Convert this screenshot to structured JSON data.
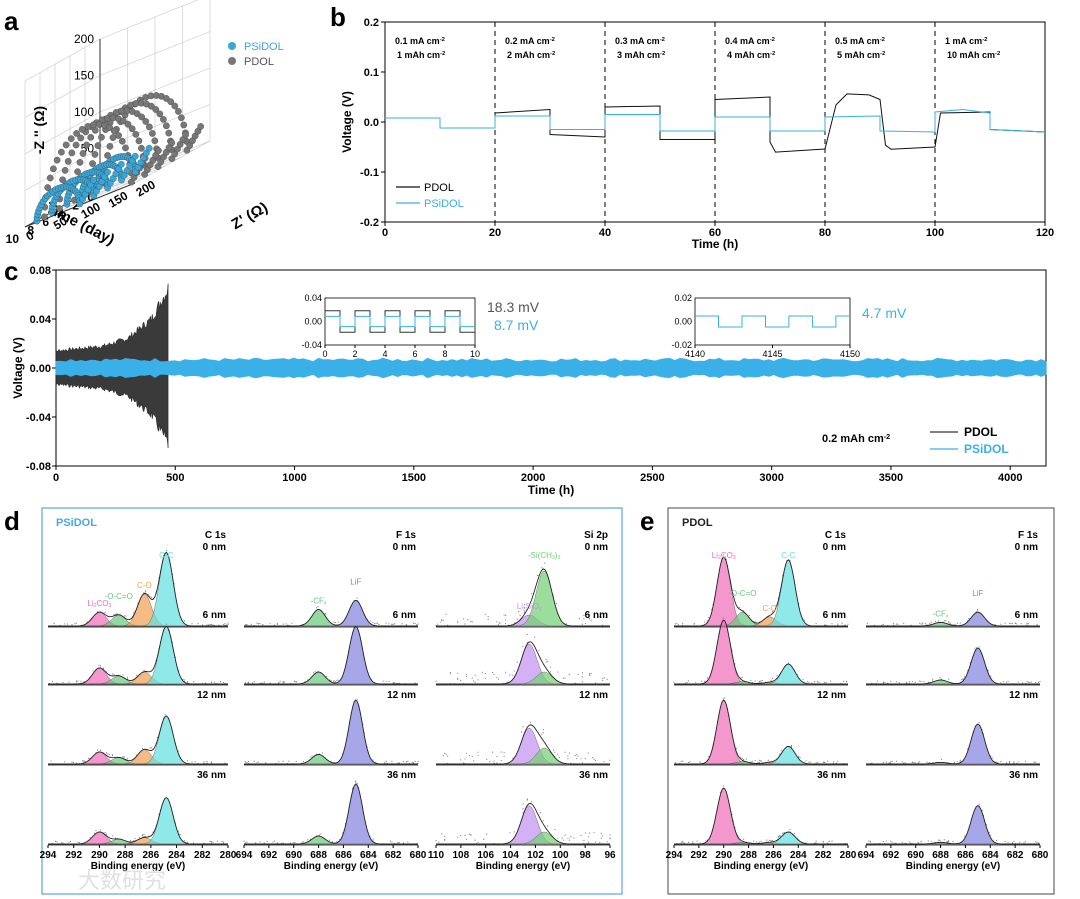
{
  "panel_letters": {
    "a": "a",
    "b": "b",
    "c": "c",
    "d": "d",
    "e": "e"
  },
  "watermark": "大数研究",
  "chart_data": [
    {
      "id": "a",
      "type": "scatter",
      "title": "",
      "xlabel": "Time (day)",
      "ylabel": "-Z '' (Ω)",
      "zlabel": "Z' (Ω)",
      "time_ticks": [
        "0",
        "2",
        "4",
        "6",
        "8",
        "10"
      ],
      "zreal_ticks": [
        "0",
        "50",
        "100",
        "150",
        "200"
      ],
      "zimag_ticks": [
        "0",
        "50",
        "100",
        "150",
        "200"
      ],
      "legend": [
        "PSiDOL",
        "PDOL"
      ],
      "series": [
        {
          "name": "PSiDOL",
          "days": [
            1,
            3,
            5,
            7,
            9
          ],
          "arc_diameter_ohm": [
            70,
            72,
            74,
            76,
            78
          ],
          "arc_height_ohm": [
            30,
            30,
            31,
            32,
            33
          ]
        },
        {
          "name": "PDOL",
          "days": [
            0,
            2,
            4,
            6,
            8
          ],
          "arc_diameter_ohm": [
            150,
            150,
            152,
            155,
            158
          ],
          "arc_height_ohm": [
            95,
            96,
            97,
            98,
            100
          ]
        }
      ]
    },
    {
      "id": "b",
      "type": "line",
      "xlabel": "Time (h)",
      "ylabel": "Voltage (V)",
      "xlim": [
        0,
        120
      ],
      "ylim": [
        -0.2,
        0.2
      ],
      "xticks": [
        "0",
        "20",
        "40",
        "60",
        "80",
        "100",
        "120"
      ],
      "yticks": [
        "-0.2",
        "-0.1",
        "0.0",
        "0.1",
        "0.2"
      ],
      "annotations": [
        {
          "l1": "0.1 mA cm",
          "s1": "-2",
          "l2": "1 mAh cm",
          "s2": "-2",
          "x": 0
        },
        {
          "l1": "0.2 mA cm",
          "s1": "-2",
          "l2": "2 mAh cm",
          "s2": "-2",
          "x": 20
        },
        {
          "l1": "0.3 mA cm",
          "s1": "-2",
          "l2": "3 mAh cm",
          "s2": "-2",
          "x": 40
        },
        {
          "l1": "0.4 mA cm",
          "s1": "-2",
          "l2": "4 mAh cm",
          "s2": "-2",
          "x": 60
        },
        {
          "l1": "0.5 mA cm",
          "s1": "-2",
          "l2": "5 mAh cm",
          "s2": "-2",
          "x": 80
        },
        {
          "l1": "1 mA cm",
          "s1": "-2",
          "l2": "10 mAh cm",
          "s2": "-2",
          "x": 100
        }
      ],
      "dividers": [
        20,
        40,
        60,
        80,
        100
      ],
      "legend": [
        "PDOL",
        "PSiDOL"
      ],
      "series": [
        {
          "name": "PDOL",
          "points": [
            [
              0,
              0.008
            ],
            [
              10,
              0.008
            ],
            [
              10,
              -0.012
            ],
            [
              20,
              -0.012
            ],
            [
              20,
              0.018
            ],
            [
              30,
              0.025
            ],
            [
              30,
              -0.025
            ],
            [
              40,
              -0.03
            ],
            [
              40,
              0.03
            ],
            [
              50,
              0.032
            ],
            [
              50,
              -0.035
            ],
            [
              60,
              -0.035
            ],
            [
              60,
              0.045
            ],
            [
              70,
              0.05
            ],
            [
              70,
              -0.04
            ],
            [
              71,
              -0.06
            ],
            [
              80,
              -0.055
            ],
            [
              82,
              0.04
            ],
            [
              84,
              0.06
            ],
            [
              88,
              0.055
            ],
            [
              90,
              0.045
            ],
            [
              91,
              -0.04
            ],
            [
              92,
              -0.06
            ],
            [
              100,
              -0.05
            ],
            [
              101,
              0.018
            ],
            [
              110,
              0.02
            ],
            [
              110,
              -0.015
            ],
            [
              120,
              -0.02
            ]
          ]
        },
        {
          "name": "PSiDOL",
          "points": [
            [
              0,
              0.008
            ],
            [
              10,
              0.008
            ],
            [
              10,
              -0.012
            ],
            [
              20,
              -0.012
            ],
            [
              20,
              0.012
            ],
            [
              30,
              0.012
            ],
            [
              30,
              -0.015
            ],
            [
              40,
              -0.015
            ],
            [
              40,
              0.015
            ],
            [
              50,
              0.015
            ],
            [
              50,
              -0.018
            ],
            [
              60,
              -0.018
            ],
            [
              60,
              0.01
            ],
            [
              70,
              0.01
            ],
            [
              70,
              -0.018
            ],
            [
              80,
              -0.018
            ],
            [
              80,
              0.01
            ],
            [
              90,
              0.012
            ],
            [
              90,
              -0.018
            ],
            [
              100,
              -0.02
            ],
            [
              100,
              0.02
            ],
            [
              105,
              0.025
            ],
            [
              110,
              0.018
            ],
            [
              110,
              -0.015
            ],
            [
              120,
              -0.02
            ]
          ]
        }
      ]
    },
    {
      "id": "c",
      "type": "line",
      "xlabel": "Time (h)",
      "ylabel": "Voltage (V)",
      "xlim": [
        0,
        4150
      ],
      "ylim": [
        -0.08,
        0.08
      ],
      "xticks": [
        "0",
        "500",
        "1000",
        "1500",
        "2000",
        "2500",
        "3000",
        "3500",
        "4000"
      ],
      "yticks": [
        "-0.08",
        "-0.04",
        "0.00",
        "0.04",
        "0.08"
      ],
      "annotation": "0.2 mAh cm",
      "annotation_sup": "-2",
      "legend": [
        "PDOL",
        "PSiDOL"
      ],
      "series": [
        {
          "name": "PDOL",
          "envelope": [
            [
              0,
              0.014
            ],
            [
              100,
              0.016
            ],
            [
              200,
              0.018
            ],
            [
              300,
              0.024
            ],
            [
              400,
              0.04
            ],
            [
              470,
              0.065
            ]
          ],
          "ends_at_h": 470
        },
        {
          "name": "PSiDOL",
          "envelope": [
            [
              0,
              0.008
            ],
            [
              4150,
              0.006
            ]
          ]
        }
      ],
      "insets": [
        {
          "xlim": [
            0,
            10
          ],
          "ylim": [
            -0.04,
            0.04
          ],
          "xticks": [
            "0",
            "2",
            "4",
            "6",
            "8",
            "10"
          ],
          "yticks": [
            "-0.04",
            "0.00",
            "0.04"
          ],
          "labels": [
            "18.3 mV",
            "8.7 mV"
          ]
        },
        {
          "xlim": [
            4140,
            4150
          ],
          "ylim": [
            -0.02,
            0.02
          ],
          "xticks": [
            "4140",
            "4145",
            "4150"
          ],
          "yticks": [
            "-0.02",
            "0.00",
            "0.02"
          ],
          "labels": [
            "4.7 mV"
          ]
        }
      ]
    },
    {
      "id": "d",
      "type": "line",
      "title": "PSiDOL",
      "xlabel": "Binding energy (eV)",
      "depths": [
        "0 nm",
        "6 nm",
        "12 nm",
        "36 nm"
      ],
      "spectra": [
        {
          "name": "C 1s",
          "xticks": [
            "294",
            "292",
            "290",
            "288",
            "286",
            "284",
            "282",
            "280"
          ],
          "peaks": [
            {
              "label": "Li2CO3",
              "base": "Li",
              "sub": "2",
              "tail": "CO",
              "sub2": "3",
              "center_eV": 290,
              "heights": [
                0.15,
                0.2,
                0.15,
                0.15
              ],
              "color": "#f06bb8"
            },
            {
              "label": "-O-C=O",
              "base": "-O-C=O",
              "center_eV": 288.5,
              "heights": [
                0.12,
                0.1,
                0.08,
                0.06
              ],
              "color": "#67c77a"
            },
            {
              "label": "C-O",
              "base": "C-O",
              "center_eV": 286.5,
              "heights": [
                0.35,
                0.15,
                0.18,
                0.08
              ],
              "color": "#f0a050"
            },
            {
              "label": "C-C",
              "base": "C-C",
              "center_eV": 284.8,
              "heights": [
                0.8,
                0.72,
                0.6,
                0.58
              ],
              "color": "#60e0e0"
            }
          ]
        },
        {
          "name": "F 1s",
          "xticks": [
            "694",
            "692",
            "690",
            "688",
            "686",
            "684",
            "682",
            "680"
          ],
          "peaks": [
            {
              "label": "-CFx",
              "base": "-CF",
              "sub": "x",
              "center_eV": 688,
              "heights": [
                0.18,
                0.15,
                0.12,
                0.1
              ],
              "color": "#67c77a"
            },
            {
              "label": "LiF",
              "base": "LiF",
              "center_eV": 685,
              "heights": [
                0.28,
                0.72,
                0.8,
                0.75
              ],
              "color": "#8080e0"
            }
          ]
        },
        {
          "name": "Si 2p",
          "xticks": [
            "110",
            "108",
            "106",
            "104",
            "102",
            "100",
            "98",
            "96"
          ],
          "peaks": [
            {
              "label": "LixSiOy",
              "base": "Li",
              "sub": "x",
              "tail": "SiO",
              "sub2": "y",
              "center_eV": 102.5,
              "heights": [
                0.12,
                0.5,
                0.45,
                0.48
              ],
              "color": "#c090f0"
            },
            {
              "label": "-Si(CH3)3",
              "base": "-Si(CH",
              "sub": "3",
              "tail": ")",
              "sub2": "3",
              "center_eV": 101.3,
              "heights": [
                0.6,
                0.15,
                0.2,
                0.15
              ],
              "color": "#70d070"
            }
          ]
        }
      ]
    },
    {
      "id": "e",
      "type": "line",
      "title": "PDOL",
      "xlabel": "Binding energy (eV)",
      "depths": [
        "0 nm",
        "6 nm",
        "12 nm",
        "36 nm"
      ],
      "spectra": [
        {
          "name": "C 1s",
          "xticks": [
            "294",
            "292",
            "290",
            "288",
            "286",
            "284",
            "282",
            "280"
          ],
          "peaks": [
            {
              "label": "Li2CO3",
              "base": "Li",
              "sub": "2",
              "tail": "CO",
              "sub2": "3",
              "center_eV": 290,
              "heights": [
                0.75,
                0.8,
                0.8,
                0.7
              ],
              "color": "#f06bb8"
            },
            {
              "label": "-O-C=O",
              "base": "-O-C=O",
              "center_eV": 288.5,
              "heights": [
                0.15,
                0.03,
                0.03,
                0.02
              ],
              "color": "#67c77a"
            },
            {
              "label": "C-O",
              "base": "C-O",
              "center_eV": 286.3,
              "heights": [
                0.1,
                0.02,
                0.02,
                0.02
              ],
              "color": "#f0a050"
            },
            {
              "label": "C-C",
              "base": "C-C",
              "center_eV": 284.8,
              "heights": [
                0.72,
                0.25,
                0.22,
                0.15
              ],
              "color": "#60e0e0"
            }
          ]
        },
        {
          "name": "F 1s",
          "xticks": [
            "694",
            "692",
            "690",
            "688",
            "686",
            "684",
            "682",
            "680"
          ],
          "peaks": [
            {
              "label": "-CFx",
              "base": "-CF",
              "sub": "x",
              "center_eV": 688,
              "heights": [
                0.04,
                0.05,
                0.02,
                0.02
              ],
              "color": "#67c77a"
            },
            {
              "label": "LiF",
              "base": "LiF",
              "center_eV": 685,
              "heights": [
                0.15,
                0.45,
                0.5,
                0.48
              ],
              "color": "#8080e0"
            }
          ]
        }
      ]
    }
  ]
}
